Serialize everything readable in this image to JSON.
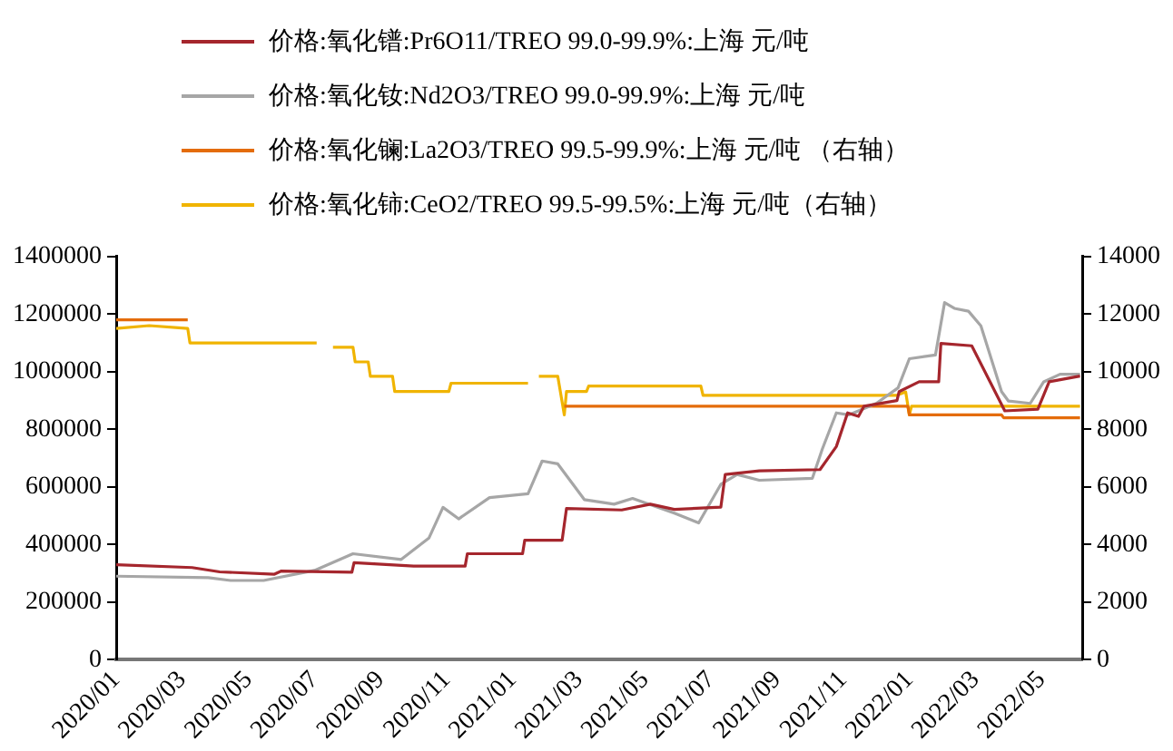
{
  "chart_data": {
    "type": "line",
    "legend": "top",
    "grid": false,
    "marker": "none",
    "xlim": [
      "2020-01-01",
      "2022-06-08"
    ],
    "xticks": [
      {
        "value": "2020-01-01",
        "label": "2020/01"
      },
      {
        "value": "2020-03-01",
        "label": "2020/03"
      },
      {
        "value": "2020-05-01",
        "label": "2020/05"
      },
      {
        "value": "2020-07-01",
        "label": "2020/07"
      },
      {
        "value": "2020-09-01",
        "label": "2020/09"
      },
      {
        "value": "2020-11-01",
        "label": "2020/11"
      },
      {
        "value": "2021-01-01",
        "label": "2021/01"
      },
      {
        "value": "2021-03-01",
        "label": "2021/03"
      },
      {
        "value": "2021-05-01",
        "label": "2021/05"
      },
      {
        "value": "2021-07-01",
        "label": "2021/07"
      },
      {
        "value": "2021-09-01",
        "label": "2021/09"
      },
      {
        "value": "2021-11-01",
        "label": "2021/11"
      },
      {
        "value": "2022-01-01",
        "label": "2022/01"
      },
      {
        "value": "2022-03-01",
        "label": "2022/03"
      },
      {
        "value": "2022-05-01",
        "label": "2022/05"
      }
    ],
    "ylim": [
      0,
      1400000
    ],
    "yticks": [
      0,
      200000,
      400000,
      600000,
      800000,
      1000000,
      1200000,
      1400000
    ],
    "y2lim": [
      0,
      14000
    ],
    "y2ticks": [
      0,
      2000,
      4000,
      6000,
      8000,
      10000,
      12000,
      14000
    ],
    "series": [
      {
        "name": "价格:氧化镨:Pr6O11/TREO 99.0-99.9%:上海 元/吨",
        "color": "#a5262d",
        "x": [
          "2020-01-01",
          "2020-03-10",
          "2020-04-05",
          "2020-05-25",
          "2020-06-01",
          "2020-08-05",
          "2020-08-07",
          "2020-10-01",
          "2020-11-18",
          "2020-11-20",
          "2021-01-10",
          "2021-01-12",
          "2021-02-16",
          "2021-02-20",
          "2021-04-10",
          "2021-05-06",
          "2021-05-28",
          "2021-07-10",
          "2021-07-14",
          "2021-08-15",
          "2021-10-10",
          "2021-10-25",
          "2021-11-05",
          "2021-11-15",
          "2021-11-20",
          "2021-12-20",
          "2021-12-22",
          "2022-01-10",
          "2022-01-28",
          "2022-01-30",
          "2022-02-28",
          "2022-03-28",
          "2022-04-28",
          "2022-05-08",
          "2022-06-06"
        ],
        "values": [
          330000,
          320000,
          305000,
          297000,
          308000,
          304000,
          337000,
          325000,
          325000,
          368000,
          368000,
          415000,
          415000,
          525000,
          520000,
          540000,
          522000,
          530000,
          643000,
          656000,
          660000,
          740000,
          857000,
          845000,
          880000,
          900000,
          931000,
          965000,
          965000,
          1098000,
          1090000,
          864000,
          870000,
          965000,
          985000
        ]
      },
      {
        "name": "价格:氧化钕:Nd2O3/TREO 99.0-99.9%:上海 元/吨",
        "color": "#a6a6a6",
        "x": [
          "2020-01-01",
          "2020-03-25",
          "2020-04-15",
          "2020-05-15",
          "2020-07-01",
          "2020-08-06",
          "2020-09-20",
          "2020-10-15",
          "2020-10-28",
          "2020-11-12",
          "2020-12-10",
          "2021-01-15",
          "2021-01-28",
          "2021-02-12",
          "2021-03-06",
          "2021-04-03",
          "2021-04-20",
          "2021-05-28",
          "2021-06-20",
          "2021-07-10",
          "2021-07-25",
          "2021-08-15",
          "2021-10-03",
          "2021-10-12",
          "2021-10-25",
          "2021-11-06",
          "2021-12-01",
          "2021-12-21",
          "2022-01-01",
          "2022-01-25",
          "2022-02-03",
          "2022-02-12",
          "2022-02-25",
          "2022-03-06",
          "2022-03-25",
          "2022-04-01",
          "2022-04-21",
          "2022-05-03",
          "2022-05-18",
          "2022-06-06"
        ],
        "values": [
          290000,
          285000,
          275000,
          275000,
          310000,
          368000,
          348000,
          422000,
          529000,
          489000,
          563000,
          576000,
          690000,
          680000,
          556000,
          540000,
          560000,
          509000,
          475000,
          609000,
          643000,
          623000,
          630000,
          730000,
          857000,
          850000,
          890000,
          944000,
          1045000,
          1058000,
          1240000,
          1220000,
          1210000,
          1159000,
          931000,
          898000,
          890000,
          965000,
          991000,
          991000
        ]
      },
      {
        "name": "价格:氧化镧:La2O3/TREO 99.5-99.9%:上海  元/吨 （右轴）",
        "color": "#e46c0a",
        "axis": "y2",
        "x": [
          "2020-01-01",
          "2020-03-06",
          "2020-03-07",
          "2021-02-18",
          "2021-12-30",
          "2022-01-01",
          "2022-03-25",
          "2022-03-27",
          "2022-06-06"
        ],
        "values": [
          11800,
          11800,
          null,
          8800,
          8800,
          8500,
          8500,
          8400,
          8400
        ]
      },
      {
        "name": "价格:氧化铈:CeO2/TREO 99.5-99.5%:上海 元/吨（右轴）",
        "color": "#f0b400",
        "axis": "y2",
        "x": [
          "2020-01-01",
          "2020-02-01",
          "2020-03-06",
          "2020-03-08",
          "2020-07-03",
          "2020-07-10",
          "2020-07-18",
          "2020-08-06",
          "2020-08-08",
          "2020-08-20",
          "2020-08-22",
          "2020-09-12",
          "2020-09-14",
          "2020-11-03",
          "2020-11-05",
          "2021-01-15",
          "2021-01-20",
          "2021-01-25",
          "2021-02-12",
          "2021-02-18",
          "2021-02-20",
          "2021-03-08",
          "2021-03-10",
          "2021-06-22",
          "2021-06-24",
          "2021-12-20",
          "2021-12-28",
          "2022-01-01",
          "2022-01-03",
          "2022-06-06"
        ],
        "values": [
          11500,
          11600,
          11500,
          11000,
          11000,
          null,
          10850,
          10850,
          10340,
          10340,
          9840,
          9840,
          9310,
          9310,
          9600,
          9600,
          null,
          9840,
          9840,
          8500,
          9310,
          9310,
          9500,
          9500,
          9180,
          9180,
          9300,
          8500,
          8800,
          8800
        ]
      }
    ]
  }
}
